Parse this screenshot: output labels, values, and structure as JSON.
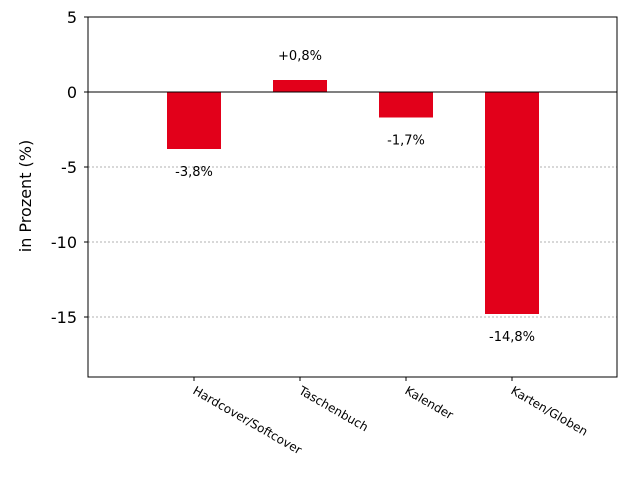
{
  "chart_data": {
    "type": "bar",
    "title": "",
    "xlabel": "",
    "ylabel": "in Prozent (%)",
    "ylim": [
      -19,
      5
    ],
    "yticks": [
      5,
      0,
      -5,
      -10,
      -15
    ],
    "ytick_labels": [
      "5",
      "0",
      "-5",
      "-10",
      "-15"
    ],
    "grid": "horizontal dotted at negative ticks",
    "categories": [
      "Hardcover/Softcover",
      "Taschenbuch",
      "Kalender",
      "Karten/Globen"
    ],
    "values": [
      -3.8,
      0.8,
      -1.7,
      -14.8
    ],
    "data_labels": [
      "-3,8%",
      "+0,8%",
      "-1,7%",
      "-14,8%"
    ],
    "bar_color": "#e2001a"
  }
}
